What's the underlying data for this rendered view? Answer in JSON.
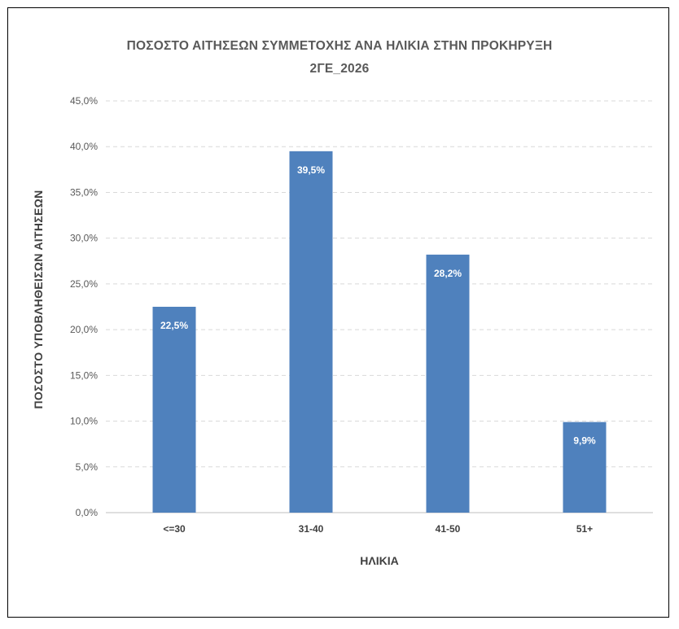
{
  "chart_data": {
    "type": "bar",
    "title_lines": [
      "ΠΟΣΟΣΤΟ ΑΙΤΗΣΕΩΝ ΣΥΜΜΕΤΟΧΗΣ ΑΝΑ ΗΛΙΚΙΑ ΣΤΗΝ ΠΡΟΚΗΡΥΞΗ",
      "2ΓΕ_2026"
    ],
    "xlabel": "ΗΛΙΚΙΑ",
    "ylabel": "ΠΟΣΟΣΤΟ ΥΠΟΒΛΗΘΕΙΣΩΝ ΑΙΤΗΣΕΩΝ",
    "categories": [
      "<=30",
      "31-40",
      "41-50",
      "51+"
    ],
    "values": [
      22.5,
      39.5,
      28.2,
      9.9
    ],
    "data_labels": [
      "22,5%",
      "39,5%",
      "28,2%",
      "9,9%"
    ],
    "ylim": [
      0,
      45
    ],
    "yticks": [
      0,
      5,
      10,
      15,
      20,
      25,
      30,
      35,
      40,
      45
    ],
    "ytick_labels": [
      "0,0%",
      "5,0%",
      "10,0%",
      "15,0%",
      "20,0%",
      "25,0%",
      "30,0%",
      "35,0%",
      "40,0%",
      "45,0%"
    ],
    "grid": true,
    "legend": "none",
    "bar_color": "#4f81bd"
  }
}
